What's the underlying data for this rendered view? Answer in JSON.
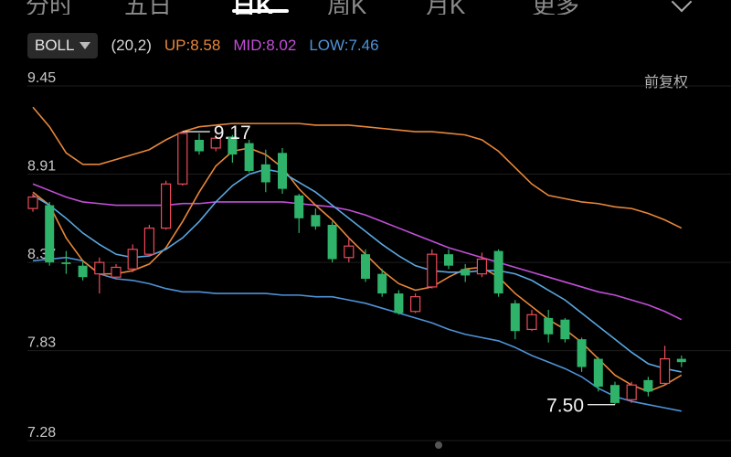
{
  "tabs": [
    "分时",
    "五日",
    "日K",
    "周K",
    "月K",
    "更多"
  ],
  "active_tab": 2,
  "indicator": {
    "name": "BOLL",
    "params": "(20,2)",
    "up": "UP:8.58",
    "mid": "MID:8.02",
    "low": "LOW:7.46"
  },
  "adjust_label": "前复权",
  "colors": {
    "up": "#e8873a",
    "mid": "#c24fd8",
    "low": "#4f93d8",
    "rise": "#ee4b5a",
    "fall": "#2fb36a",
    "ma": "#e8873a",
    "ma2": "#5aa7e0"
  },
  "chart_data": {
    "type": "candlestick",
    "ylim": [
      7.28,
      9.45
    ],
    "yticks": [
      "9.45",
      "8.91",
      "8.37",
      "7.83",
      "7.28"
    ],
    "annotations": {
      "high": "9.17",
      "low": "7.50"
    },
    "candles": [
      [
        8.7,
        8.77,
        8.79,
        8.68
      ],
      [
        8.72,
        8.37,
        8.74,
        8.35
      ],
      [
        8.37,
        8.36,
        8.44,
        8.3
      ],
      [
        8.35,
        8.28,
        8.38,
        8.26
      ],
      [
        8.3,
        8.37,
        8.4,
        8.18
      ],
      [
        8.28,
        8.34,
        8.36,
        8.27
      ],
      [
        8.33,
        8.45,
        8.48,
        8.31
      ],
      [
        8.42,
        8.58,
        8.6,
        8.41
      ],
      [
        8.58,
        8.85,
        8.87,
        8.57
      ],
      [
        8.85,
        9.16,
        9.17,
        8.84
      ],
      [
        9.12,
        9.05,
        9.16,
        9.03
      ],
      [
        9.07,
        9.13,
        9.15,
        9.05
      ],
      [
        9.14,
        9.03,
        9.15,
        8.98
      ],
      [
        9.1,
        8.93,
        9.12,
        8.92
      ],
      [
        8.97,
        8.86,
        9.06,
        8.8
      ],
      [
        9.04,
        8.82,
        9.07,
        8.79
      ],
      [
        8.78,
        8.64,
        8.79,
        8.55
      ],
      [
        8.66,
        8.59,
        8.7,
        8.57
      ],
      [
        8.6,
        8.39,
        8.62,
        8.37
      ],
      [
        8.4,
        8.47,
        8.52,
        8.37
      ],
      [
        8.42,
        8.27,
        8.45,
        8.25
      ],
      [
        8.3,
        8.18,
        8.33,
        8.16
      ],
      [
        8.18,
        8.06,
        8.2,
        8.05
      ],
      [
        8.07,
        8.16,
        8.18,
        8.06
      ],
      [
        8.22,
        8.42,
        8.45,
        8.21
      ],
      [
        8.42,
        8.35,
        8.45,
        8.33
      ],
      [
        8.33,
        8.29,
        8.36,
        8.25
      ],
      [
        8.3,
        8.39,
        8.43,
        8.28
      ],
      [
        8.44,
        8.18,
        8.45,
        8.16
      ],
      [
        8.12,
        7.95,
        8.14,
        7.9
      ],
      [
        7.96,
        8.05,
        8.08,
        7.95
      ],
      [
        8.03,
        7.93,
        8.08,
        7.88
      ],
      [
        8.02,
        7.9,
        8.03,
        7.88
      ],
      [
        7.9,
        7.73,
        7.91,
        7.7
      ],
      [
        7.78,
        7.61,
        7.79,
        7.58
      ],
      [
        7.62,
        7.51,
        7.64,
        7.5
      ],
      [
        7.53,
        7.62,
        7.64,
        7.51
      ],
      [
        7.65,
        7.58,
        7.67,
        7.55
      ],
      [
        7.63,
        7.78,
        7.86,
        7.62
      ],
      [
        7.78,
        7.76,
        7.8,
        7.73
      ]
    ],
    "series": [
      {
        "name": "UP",
        "values": [
          9.32,
          9.2,
          9.04,
          8.97,
          8.97,
          9.0,
          9.03,
          9.06,
          9.12,
          9.17,
          9.2,
          9.21,
          9.22,
          9.22,
          9.22,
          9.22,
          9.22,
          9.21,
          9.21,
          9.21,
          9.2,
          9.19,
          9.18,
          9.17,
          9.17,
          9.16,
          9.15,
          9.12,
          9.05,
          8.95,
          8.85,
          8.78,
          8.76,
          8.74,
          8.73,
          8.71,
          8.7,
          8.67,
          8.63,
          8.58
        ]
      },
      {
        "name": "MID",
        "values": [
          8.85,
          8.81,
          8.77,
          8.74,
          8.73,
          8.72,
          8.72,
          8.72,
          8.72,
          8.73,
          8.73,
          8.74,
          8.74,
          8.74,
          8.74,
          8.74,
          8.73,
          8.72,
          8.71,
          8.69,
          8.66,
          8.62,
          8.58,
          8.54,
          8.5,
          8.46,
          8.43,
          8.4,
          8.37,
          8.34,
          8.31,
          8.28,
          8.25,
          8.22,
          8.19,
          8.17,
          8.14,
          8.11,
          8.07,
          8.02
        ]
      },
      {
        "name": "LOW",
        "values": [
          8.38,
          8.39,
          8.4,
          8.38,
          8.3,
          8.27,
          8.26,
          8.24,
          8.21,
          8.19,
          8.19,
          8.18,
          8.18,
          8.18,
          8.18,
          8.17,
          8.17,
          8.16,
          8.16,
          8.14,
          8.12,
          8.09,
          8.06,
          8.03,
          8.0,
          7.96,
          7.93,
          7.91,
          7.89,
          7.85,
          7.8,
          7.76,
          7.72,
          7.67,
          7.6,
          7.55,
          7.52,
          7.5,
          7.48,
          7.46
        ]
      },
      {
        "values": [
          8.8,
          8.72,
          8.52,
          8.38,
          8.3,
          8.3,
          8.32,
          8.36,
          8.46,
          8.62,
          8.8,
          8.96,
          9.05,
          9.07,
          9.03,
          8.95,
          8.82,
          8.72,
          8.63,
          8.52,
          8.42,
          8.32,
          8.24,
          8.2,
          8.22,
          8.28,
          8.33,
          8.34,
          8.28,
          8.18,
          8.1,
          8.02,
          7.96,
          7.88,
          7.78,
          7.68,
          7.62,
          7.58,
          7.62,
          7.68
        ]
      },
      {
        "values": [
          8.78,
          8.72,
          8.64,
          8.55,
          8.48,
          8.42,
          8.4,
          8.41,
          8.45,
          8.52,
          8.62,
          8.74,
          8.84,
          8.91,
          8.94,
          8.92,
          8.86,
          8.8,
          8.72,
          8.64,
          8.56,
          8.48,
          8.41,
          8.35,
          8.32,
          8.31,
          8.31,
          8.32,
          8.32,
          8.3,
          8.26,
          8.2,
          8.14,
          8.06,
          7.98,
          7.9,
          7.82,
          7.75,
          7.72,
          7.7
        ]
      }
    ]
  }
}
